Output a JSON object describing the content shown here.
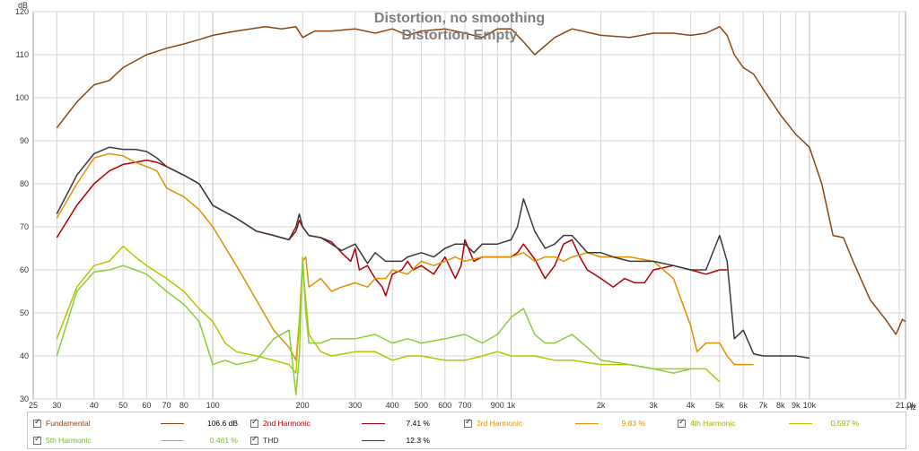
{
  "chart_data": {
    "type": "line",
    "title": "Distortion, no smoothing",
    "subtitle": "Distortion Empty",
    "ylabel": "dB",
    "xunit": "Hz",
    "xscale": "log",
    "xlim": [
      25,
      21000
    ],
    "ylim": [
      30,
      120
    ],
    "grid": true,
    "legend_position": "bottom",
    "yticks": [
      30,
      40,
      50,
      60,
      70,
      80,
      90,
      100,
      110,
      120
    ],
    "xticks": [
      {
        "value": 25,
        "label": "25"
      },
      {
        "value": 30,
        "label": "30"
      },
      {
        "value": 40,
        "label": "40"
      },
      {
        "value": 50,
        "label": "50"
      },
      {
        "value": 60,
        "label": "60"
      },
      {
        "value": 70,
        "label": "70"
      },
      {
        "value": 80,
        "label": "80"
      },
      {
        "value": 100,
        "label": "100"
      },
      {
        "value": 200,
        "label": "200"
      },
      {
        "value": 300,
        "label": "300"
      },
      {
        "value": 400,
        "label": "400"
      },
      {
        "value": 500,
        "label": "500"
      },
      {
        "value": 600,
        "label": "600"
      },
      {
        "value": 700,
        "label": "700"
      },
      {
        "value": 900,
        "label": "900"
      },
      {
        "value": 1000,
        "label": "1k"
      },
      {
        "value": 2000,
        "label": "2k"
      },
      {
        "value": 3000,
        "label": "3k"
      },
      {
        "value": 4000,
        "label": "4k"
      },
      {
        "value": 5000,
        "label": "5k"
      },
      {
        "value": 6000,
        "label": "6k"
      },
      {
        "value": 7000,
        "label": "7k"
      },
      {
        "value": 8000,
        "label": "8k"
      },
      {
        "value": 9000,
        "label": "9k"
      },
      {
        "value": 10000,
        "label": "10k"
      },
      {
        "value": 21000,
        "label": "21.0k"
      }
    ],
    "series": [
      {
        "name": "Fundamental",
        "color": "#8b4513",
        "legend_value": "106.6 dB",
        "x": [
          30,
          35,
          40,
          45,
          50,
          60,
          70,
          80,
          90,
          100,
          120,
          150,
          170,
          190,
          200,
          220,
          250,
          300,
          350,
          400,
          450,
          500,
          600,
          700,
          800,
          900,
          1000,
          1100,
          1200,
          1400,
          1600,
          2000,
          2500,
          3000,
          3500,
          4000,
          4500,
          5000,
          5300,
          5600,
          6000,
          6500,
          7000,
          8000,
          9000,
          10000,
          11000,
          12000,
          13000,
          14000,
          16000,
          18000,
          19500,
          20500,
          21000
        ],
        "y": [
          93,
          99,
          103,
          104,
          107,
          110,
          111.5,
          112.5,
          113.5,
          114.5,
          115.5,
          116.5,
          116,
          116.5,
          114,
          115.5,
          115.5,
          116,
          115,
          116,
          114.5,
          115.5,
          116,
          115,
          114,
          116,
          116,
          113,
          110,
          114,
          116,
          114.5,
          114,
          115,
          115,
          114.5,
          115,
          116.5,
          114.5,
          110,
          107,
          105.5,
          102,
          96,
          91.5,
          88.5,
          80,
          68,
          67.5,
          62,
          53,
          48.5,
          45,
          48.5,
          48
        ]
      },
      {
        "name": "2nd Harmonic",
        "color": "#b00000",
        "legend_value": "7.41 %",
        "x": [
          30,
          35,
          40,
          45,
          50,
          55,
          60,
          65,
          70,
          80,
          90,
          100,
          120,
          140,
          160,
          180,
          190,
          195,
          200,
          210,
          230,
          250,
          270,
          290,
          300,
          310,
          330,
          350,
          370,
          380,
          400,
          430,
          450,
          470,
          500,
          550,
          600,
          650,
          680,
          700,
          750,
          800,
          900,
          1000,
          1050,
          1100,
          1200,
          1300,
          1400,
          1500,
          1600,
          1700,
          1800,
          2000,
          2200,
          2400,
          2600,
          2800,
          3000,
          3500,
          4000,
          4500,
          5000,
          5300
        ],
        "y": [
          67.5,
          75,
          80,
          83,
          84.5,
          85,
          85.5,
          85,
          84,
          82,
          80,
          75,
          72,
          69,
          68,
          67,
          69,
          71.5,
          70,
          68,
          67.5,
          66.5,
          64,
          62,
          65,
          60,
          61,
          58,
          56,
          54,
          59,
          60,
          62,
          60,
          61,
          59,
          63,
          58,
          61,
          67,
          62,
          63,
          63,
          63,
          64,
          66,
          62.5,
          58,
          61,
          66,
          67,
          63,
          60,
          58,
          56,
          58,
          57,
          57,
          60,
          61,
          60,
          59,
          60,
          60
        ]
      },
      {
        "name": "3rd Harmonic",
        "color": "#e09000",
        "legend_value": "9.83 %",
        "x": [
          30,
          35,
          40,
          45,
          50,
          55,
          60,
          65,
          70,
          80,
          90,
          100,
          120,
          140,
          160,
          180,
          190,
          195,
          200,
          205,
          210,
          230,
          250,
          270,
          300,
          330,
          350,
          380,
          400,
          450,
          500,
          550,
          600,
          650,
          700,
          800,
          900,
          1000,
          1100,
          1200,
          1300,
          1400,
          1500,
          1600,
          1800,
          2000,
          2200,
          2500,
          3000,
          3500,
          4000,
          4200,
          4500,
          5000,
          5300,
          5600,
          6000,
          6500
        ],
        "y": [
          72,
          80,
          86,
          87,
          86.5,
          85,
          84,
          83,
          79,
          77,
          74,
          70,
          61,
          53,
          46,
          42,
          39,
          48,
          62,
          63,
          56,
          58,
          55,
          56,
          57,
          56,
          58,
          58,
          60,
          59,
          62,
          61,
          62,
          63,
          62,
          63,
          63,
          63,
          64,
          62,
          63,
          63,
          62,
          63,
          64,
          63,
          63,
          63,
          62,
          58,
          47,
          41,
          43,
          43,
          40,
          38,
          38,
          38
        ]
      },
      {
        "name": "4th Harmonic",
        "color": "#b8c400",
        "legend_value": "0.597 %",
        "x": [
          30,
          35,
          40,
          45,
          50,
          55,
          60,
          70,
          80,
          90,
          100,
          110,
          120,
          140,
          160,
          180,
          190,
          195,
          200,
          210,
          230,
          250,
          300,
          350,
          400,
          450,
          500,
          600,
          700,
          800,
          900,
          1000,
          1100,
          1200,
          1400,
          1600,
          2000,
          2500,
          3000,
          3500,
          4000,
          4500,
          5000
        ],
        "y": [
          44,
          56,
          61,
          62,
          65.5,
          63,
          61,
          58,
          55,
          51,
          48,
          43,
          41,
          40,
          39,
          38,
          36,
          48,
          61,
          45,
          41,
          40,
          41,
          41,
          39,
          40,
          40,
          39,
          39,
          40,
          41,
          40,
          40,
          40,
          39,
          39,
          38,
          38,
          37,
          37,
          37,
          37,
          34
        ]
      },
      {
        "name": "5th Harmonic",
        "color": "#8ccc3a",
        "legend_value": "0.461 %",
        "x": [
          30,
          35,
          40,
          45,
          50,
          55,
          60,
          70,
          80,
          90,
          100,
          110,
          120,
          140,
          160,
          180,
          190,
          195,
          200,
          205,
          210,
          230,
          250,
          300,
          350,
          400,
          450,
          500,
          600,
          700,
          800,
          900,
          1000,
          1100,
          1200,
          1300,
          1400,
          1600,
          1800,
          2000,
          2500,
          3000,
          3500,
          4000
        ],
        "y": [
          40,
          55,
          59.5,
          60,
          61,
          60,
          59,
          55,
          52,
          48,
          38,
          39,
          38,
          39,
          44,
          46,
          31,
          40,
          63,
          50,
          43,
          43,
          44,
          44,
          45,
          43,
          44,
          43,
          44,
          45,
          43,
          45,
          49,
          51,
          45,
          43,
          43,
          45,
          42,
          39,
          38,
          37,
          36,
          37
        ]
      },
      {
        "name": "THD",
        "color": "#3a3a3a",
        "legend_value": "12.3 %",
        "x": [
          30,
          35,
          40,
          45,
          50,
          55,
          60,
          65,
          70,
          80,
          90,
          100,
          120,
          140,
          160,
          180,
          190,
          195,
          200,
          210,
          230,
          250,
          270,
          300,
          330,
          350,
          380,
          400,
          430,
          450,
          500,
          550,
          600,
          650,
          700,
          750,
          800,
          900,
          1000,
          1050,
          1100,
          1200,
          1300,
          1400,
          1500,
          1600,
          1700,
          1800,
          2000,
          2200,
          2500,
          3000,
          3500,
          4000,
          4500,
          5000,
          5300,
          5600,
          6000,
          6500,
          7000,
          8000,
          9000,
          10000
        ],
        "y": [
          73,
          82,
          87,
          88.5,
          88,
          88,
          87.5,
          86,
          84,
          82,
          80,
          75,
          72,
          69,
          68,
          67,
          70,
          73,
          70,
          68,
          67.5,
          66,
          64.5,
          66,
          61.5,
          64,
          62,
          62,
          62,
          63,
          64,
          63,
          65,
          66,
          66,
          64,
          66,
          66,
          67,
          70,
          76.5,
          69,
          65,
          66,
          68,
          68,
          66,
          64,
          64,
          63,
          62,
          62,
          61,
          60,
          60,
          68,
          62,
          44,
          46,
          40.5,
          40,
          40,
          40,
          39.5
        ]
      }
    ]
  }
}
